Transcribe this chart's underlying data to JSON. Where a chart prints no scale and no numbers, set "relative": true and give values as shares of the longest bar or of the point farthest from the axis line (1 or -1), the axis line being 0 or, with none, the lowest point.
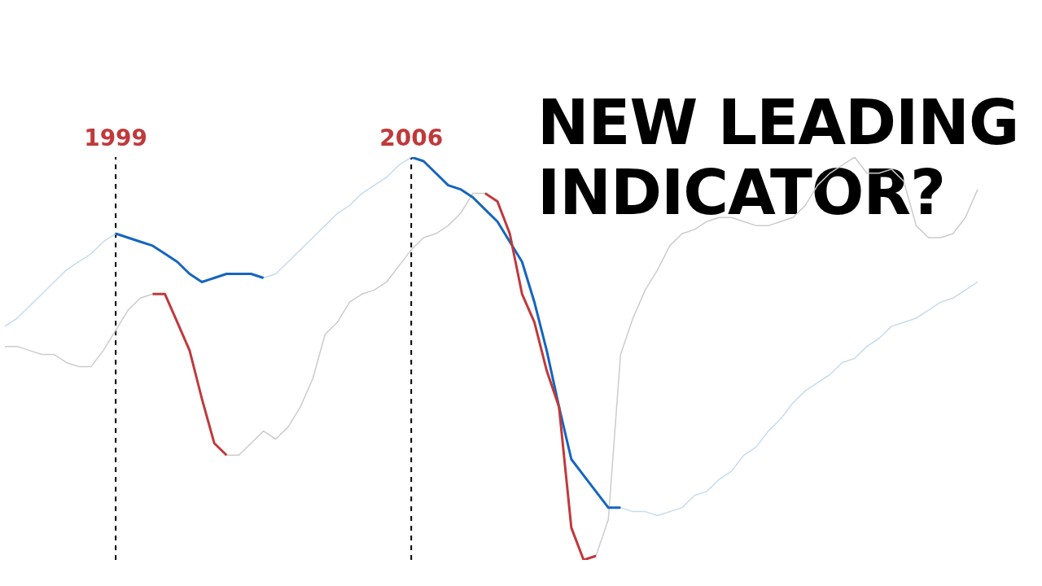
{
  "chart_data": {
    "type": "line",
    "title": "NEW LEADING INDICATOR?",
    "relative": true,
    "marker": "none",
    "tick_labels": false,
    "categories": [
      null,
      null,
      null,
      null,
      null,
      null,
      null,
      null,
      null,
      "1999",
      null,
      null,
      null,
      null,
      null,
      null,
      null,
      null,
      null,
      null,
      null,
      null,
      null,
      null,
      null,
      null,
      null,
      null,
      null,
      null,
      null,
      null,
      null,
      "2006",
      null,
      null,
      null,
      null,
      null,
      null,
      null,
      null,
      null,
      null,
      null,
      null,
      null,
      null,
      null,
      null,
      null,
      null,
      null,
      null,
      null,
      null,
      null,
      null,
      null,
      null,
      null,
      null,
      null,
      null,
      null,
      null,
      null,
      null,
      null,
      null,
      null,
      null,
      null,
      null,
      null,
      null,
      null,
      null,
      null,
      null
    ],
    "series": [
      {
        "color": "#c6dcee",
        "values": [
          0.58,
          0.6,
          0.63,
          0.66,
          0.69,
          0.72,
          0.74,
          0.76,
          0.79,
          0.81,
          0.8,
          0.79,
          0.78,
          0.76,
          0.74,
          0.71,
          0.69,
          0.7,
          0.71,
          0.71,
          0.71,
          0.7,
          0.71,
          0.74,
          0.77,
          0.8,
          0.83,
          0.86,
          0.88,
          0.91,
          0.93,
          0.95,
          0.98,
          1.0,
          0.99,
          0.96,
          0.93,
          0.92,
          0.9,
          0.87,
          0.84,
          0.79,
          0.74,
          0.64,
          0.52,
          0.38,
          0.25,
          0.21,
          0.17,
          0.13,
          0.13,
          0.12,
          0.12,
          0.11,
          0.12,
          0.13,
          0.16,
          0.17,
          0.2,
          0.22,
          0.26,
          0.28,
          0.32,
          0.35,
          0.39,
          0.42,
          0.44,
          0.46,
          0.49,
          0.5,
          0.53,
          0.55,
          0.58,
          0.59,
          0.6,
          0.62,
          0.64,
          0.65,
          0.67,
          0.69
        ]
      },
      {
        "color": "#cccccc",
        "values": [
          0.53,
          0.53,
          0.52,
          0.51,
          0.51,
          0.49,
          0.48,
          0.48,
          0.52,
          0.57,
          0.62,
          0.65,
          0.66,
          0.66,
          0.59,
          0.52,
          0.4,
          0.29,
          0.26,
          0.26,
          0.29,
          0.32,
          0.3,
          0.33,
          0.38,
          0.45,
          0.56,
          0.59,
          0.64,
          0.66,
          0.67,
          0.69,
          0.73,
          0.77,
          0.8,
          0.81,
          0.83,
          0.86,
          0.91,
          0.91,
          0.89,
          0.81,
          0.66,
          0.59,
          0.47,
          0.38,
          0.08,
          0.0,
          0.01,
          0.1,
          0.51,
          0.6,
          0.67,
          0.72,
          0.78,
          0.81,
          0.82,
          0.84,
          0.85,
          0.85,
          0.84,
          0.83,
          0.83,
          0.84,
          0.85,
          0.88,
          0.93,
          0.96,
          0.98,
          1.0,
          0.96,
          0.96,
          0.97,
          0.94,
          0.83,
          0.8,
          0.8,
          0.81,
          0.85,
          0.92
        ]
      },
      {
        "color": "#1565c0",
        "values": [
          null,
          null,
          null,
          null,
          null,
          null,
          null,
          null,
          null,
          0.81,
          0.8,
          0.79,
          0.78,
          0.76,
          0.74,
          0.71,
          0.69,
          0.7,
          0.71,
          0.71,
          0.71,
          0.7,
          null,
          null,
          null,
          null,
          null,
          null,
          null,
          null,
          null,
          null,
          null,
          null,
          null,
          null,
          null,
          null,
          null,
          null,
          null,
          null,
          null,
          null,
          null,
          null,
          null,
          null,
          null,
          null,
          null,
          null,
          null,
          null,
          null,
          null,
          null,
          null,
          null,
          null,
          null,
          null,
          null,
          null,
          null,
          null,
          null,
          null,
          null,
          null,
          null,
          null,
          null,
          null,
          null,
          null,
          null,
          null,
          null,
          null
        ]
      },
      {
        "color": "#1565c0",
        "values": [
          null,
          null,
          null,
          null,
          null,
          null,
          null,
          null,
          null,
          null,
          null,
          null,
          null,
          null,
          null,
          null,
          null,
          null,
          null,
          null,
          null,
          null,
          null,
          null,
          null,
          null,
          null,
          null,
          null,
          null,
          null,
          null,
          null,
          1.0,
          0.99,
          0.96,
          0.93,
          0.92,
          0.9,
          0.87,
          0.84,
          0.79,
          0.74,
          0.64,
          0.52,
          0.38,
          0.25,
          0.21,
          0.17,
          0.13,
          0.13,
          null,
          null,
          null,
          null,
          null,
          null,
          null,
          null,
          null,
          null,
          null,
          null,
          null,
          null,
          null,
          null,
          null,
          null,
          null,
          null,
          null,
          null,
          null,
          null,
          null,
          null,
          null,
          null,
          null
        ]
      },
      {
        "color": "#c0393b",
        "values": [
          null,
          null,
          null,
          null,
          null,
          null,
          null,
          null,
          null,
          null,
          null,
          null,
          0.66,
          0.66,
          0.59,
          0.52,
          0.4,
          0.29,
          0.26,
          null,
          null,
          null,
          null,
          null,
          null,
          null,
          null,
          null,
          null,
          null,
          null,
          null,
          null,
          null,
          null,
          null,
          null,
          null,
          null,
          null,
          null,
          null,
          null,
          null,
          null,
          null,
          null,
          null,
          null,
          null,
          null,
          null,
          null,
          null,
          null,
          null,
          null,
          null,
          null,
          null,
          null,
          null,
          null,
          null,
          null,
          null,
          null,
          null,
          null,
          null,
          null,
          null,
          null,
          null,
          null,
          null,
          null,
          null,
          null,
          null
        ]
      },
      {
        "color": "#c0393b",
        "values": [
          null,
          null,
          null,
          null,
          null,
          null,
          null,
          null,
          null,
          null,
          null,
          null,
          null,
          null,
          null,
          null,
          null,
          null,
          null,
          null,
          null,
          null,
          null,
          null,
          null,
          null,
          null,
          null,
          null,
          null,
          null,
          null,
          null,
          null,
          null,
          null,
          null,
          null,
          null,
          0.91,
          0.89,
          0.81,
          0.66,
          0.59,
          0.47,
          0.38,
          0.08,
          0.0,
          0.01,
          null,
          null,
          null,
          null,
          null,
          null,
          null,
          null,
          null,
          null,
          null,
          null,
          null,
          null,
          null,
          null,
          null,
          null,
          null,
          null,
          null,
          null,
          null,
          null,
          null,
          null,
          null,
          null,
          null,
          null,
          null
        ]
      }
    ],
    "ref_lines": [
      {
        "axis": "x",
        "value": "1999",
        "label": "1999",
        "color": "#000000",
        "line_style": "dashed"
      },
      {
        "axis": "x",
        "value": "2006",
        "label": "2006",
        "color": "#000000",
        "line_style": "dashed"
      }
    ]
  }
}
